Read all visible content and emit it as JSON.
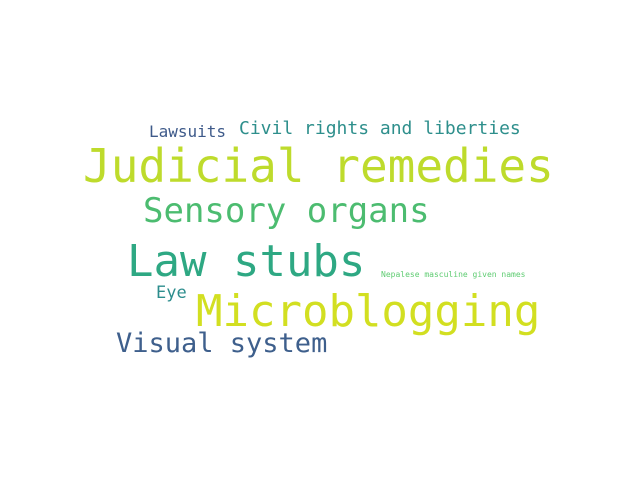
{
  "words": [
    {
      "text": "Lawsuits",
      "color": "#3e5a8a"
    },
    {
      "text": "Civil rights and liberties",
      "color": "#2e8f8c"
    },
    {
      "text": "Judicial remedies",
      "color": "#bedb2c"
    },
    {
      "text": "Sensory organs",
      "color": "#4cbc70"
    },
    {
      "text": "Law stubs",
      "color": "#2ea883"
    },
    {
      "text": "Nepalese masculine given names",
      "color": "#5fcc72"
    },
    {
      "text": "Eye",
      "color": "#2c8d8d"
    },
    {
      "text": "Microblogging",
      "color": "#d2df21"
    },
    {
      "text": "Visual system",
      "color": "#3e5f8c"
    }
  ]
}
